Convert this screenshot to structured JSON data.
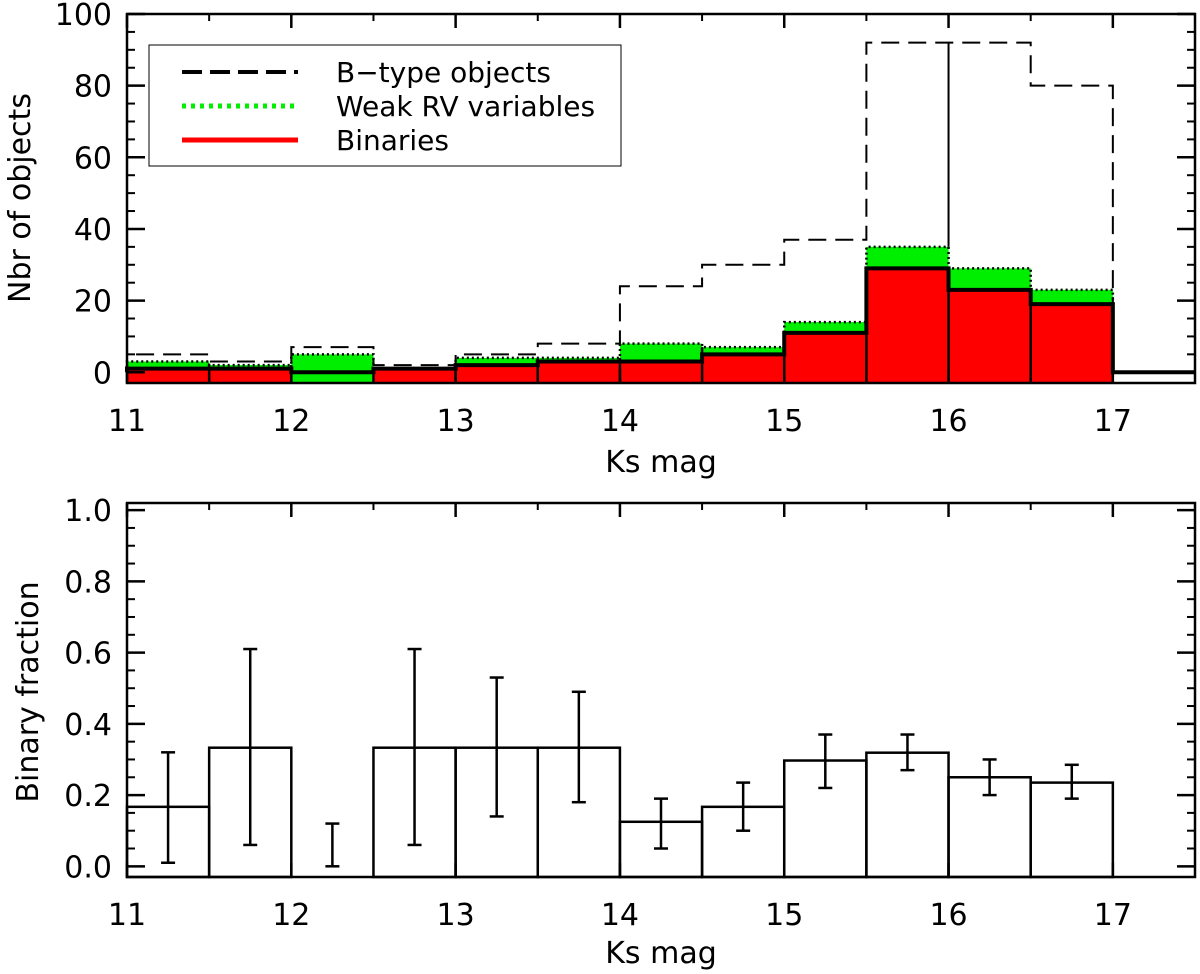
{
  "chart_data": [
    {
      "type": "bar",
      "xlabel": "Ks mag",
      "ylabel": "Nbr of objects",
      "xlim": [
        11,
        17.5
      ],
      "ylim": [
        -3,
        100
      ],
      "x_ticks": [
        "11",
        "12",
        "13",
        "14",
        "15",
        "16",
        "17"
      ],
      "y_ticks": [
        "0",
        "20",
        "40",
        "60",
        "80",
        "100"
      ],
      "bin_edges": [
        11,
        11.5,
        12,
        12.5,
        13,
        13.5,
        14,
        14.5,
        15,
        15.5,
        16,
        16.5,
        17,
        17.5
      ],
      "legend_position": "top-left",
      "series": [
        {
          "name": "B−type objects",
          "style": "dashed",
          "color": "#000000",
          "values": [
            5,
            3,
            7,
            2,
            5,
            8,
            24,
            30,
            37,
            92,
            92,
            80,
            0
          ]
        },
        {
          "name": "Weak RV variables",
          "style": "dotted",
          "color": "#00ee00",
          "values": [
            3,
            2,
            5,
            1,
            4,
            4,
            8,
            7,
            14,
            35,
            29,
            23,
            0
          ]
        },
        {
          "name": "Binaries",
          "style": "solid",
          "color": "#ff0000",
          "values": [
            1,
            1,
            0,
            1,
            2,
            3,
            3,
            5,
            11,
            29,
            23,
            19,
            0
          ]
        }
      ]
    },
    {
      "type": "bar",
      "xlabel": "Ks mag",
      "ylabel": "Binary fraction",
      "xlim": [
        11,
        17.5
      ],
      "ylim": [
        -0.03,
        1.02
      ],
      "x_ticks": [
        "11",
        "12",
        "13",
        "14",
        "15",
        "16",
        "17"
      ],
      "y_ticks": [
        "0.0",
        "0.2",
        "0.4",
        "0.6",
        "0.8",
        "1.0"
      ],
      "bin_edges": [
        11,
        11.5,
        12,
        12.5,
        13,
        13.5,
        14,
        14.5,
        15,
        15.5,
        16,
        16.5,
        17
      ],
      "values": [
        0.167,
        0.333,
        0.0,
        0.333,
        0.333,
        0.333,
        0.125,
        0.167,
        0.297,
        0.319,
        0.25,
        0.235
      ],
      "err_low": [
        0.01,
        0.06,
        0.0,
        0.06,
        0.14,
        0.18,
        0.05,
        0.1,
        0.22,
        0.27,
        0.2,
        0.19
      ],
      "err_high": [
        0.32,
        0.61,
        0.12,
        0.61,
        0.53,
        0.49,
        0.19,
        0.235,
        0.37,
        0.37,
        0.3,
        0.285
      ]
    }
  ]
}
